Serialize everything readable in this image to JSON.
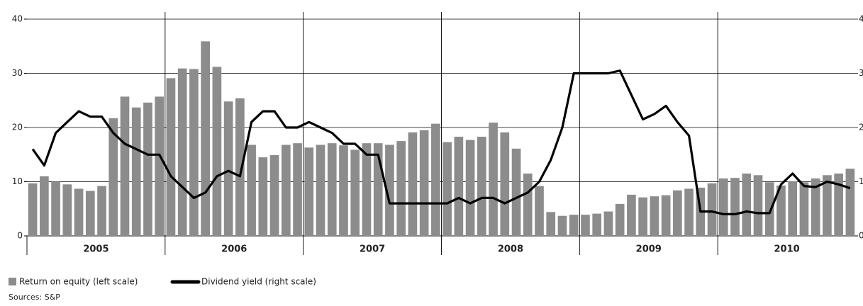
{
  "chart_data": {
    "type": "bar",
    "legend_labels": [
      "Return on equity (left scale)",
      "Dividend yield (right scale)"
    ],
    "source": "Sources: S&P",
    "categories": [
      null,
      null,
      null,
      null,
      null,
      null,
      null,
      null,
      null,
      null,
      null,
      null,
      null,
      null,
      null,
      null,
      null,
      null,
      null,
      null,
      null,
      null,
      null,
      null,
      null,
      null,
      null,
      null,
      null,
      null,
      null,
      null,
      null,
      null,
      null,
      null,
      null,
      null,
      null,
      null,
      null,
      null,
      null,
      null,
      null,
      null,
      null,
      null,
      null,
      null,
      null,
      null,
      null,
      null,
      null,
      null,
      null,
      null,
      null,
      null,
      null,
      null,
      null,
      null,
      null,
      null,
      null,
      null,
      null,
      null,
      null,
      null
    ],
    "x_group_labels": [
      "2005",
      "2006",
      "2007",
      "2008",
      "2009",
      "2010"
    ],
    "series": [
      {
        "name": "Return on equity (left scale)",
        "type": "bar",
        "color": "#8c8c8c",
        "values": [
          9.7,
          11,
          10,
          9.5,
          8.7,
          8.3,
          9.2,
          21.7,
          25.7,
          23.7,
          24.6,
          25.7,
          29.1,
          30.9,
          30.8,
          35.9,
          31.2,
          24.8,
          25.4,
          16.8,
          14.5,
          14.9,
          16.8,
          17.1,
          16.3,
          16.8,
          17.1,
          16.7,
          15.9,
          17.1,
          17.1,
          16.8,
          17.5,
          19.1,
          19.5,
          20.7,
          17.3,
          18.3,
          17.7,
          18.3,
          20.9,
          19.1,
          16.1,
          11.5,
          9.2,
          4.4,
          3.7,
          3.9,
          3.9,
          4.1,
          4.5,
          5.9,
          7.6,
          7.1,
          7.3,
          7.5,
          8.4,
          8.7,
          8.9,
          9.7,
          10.6,
          10.7,
          11.5,
          11.2,
          9.9,
          9.3,
          10.1,
          9.9,
          10.6,
          11.2,
          11.5,
          12.4
        ]
      },
      {
        "name": "Dividend yield (right scale)",
        "type": "line",
        "color": "#000000",
        "axis": "y2",
        "values": [
          1.6,
          1.3,
          1.9,
          2.1,
          2.3,
          2.2,
          2.2,
          1.9,
          1.7,
          1.6,
          1.5,
          1.5,
          1.1,
          0.9,
          0.7,
          0.8,
          1.1,
          1.2,
          1.1,
          2.1,
          2.3,
          2.3,
          2.0,
          2.0,
          2.1,
          2.0,
          1.9,
          1.7,
          1.7,
          1.5,
          1.5,
          0.6,
          0.6,
          0.6,
          0.6,
          0.6,
          0.6,
          0.7,
          0.6,
          0.7,
          0.7,
          0.6,
          0.7,
          0.8,
          1.0,
          1.4,
          2.0,
          3.0,
          3.0,
          3.0,
          3.0,
          3.05,
          2.6,
          2.15,
          2.25,
          2.4,
          2.1,
          1.85,
          0.45,
          0.45,
          0.4,
          0.4,
          0.45,
          0.42,
          0.42,
          0.95,
          1.15,
          0.92,
          0.9,
          1.0,
          0.95,
          0.88
        ]
      }
    ],
    "ylim": [
      0,
      40
    ],
    "yticks": [
      0,
      10,
      20,
      30,
      40
    ],
    "y2lim": [
      0,
      4
    ],
    "y2ticks": [
      0,
      1,
      2,
      3,
      4
    ],
    "grid": true
  }
}
